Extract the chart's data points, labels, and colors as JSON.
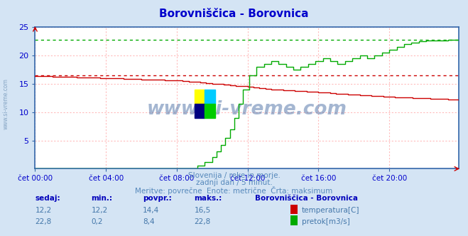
{
  "title": "Borovniščica - Borovnica",
  "title_color": "#0000cc",
  "bg_color": "#d4e4f4",
  "plot_bg_color": "#ffffff",
  "grid_color": "#ffbbbb",
  "axis_color": "#3366aa",
  "tick_color": "#0000cc",
  "ylim": [
    0,
    25
  ],
  "yticks": [
    5,
    10,
    15,
    20,
    25
  ],
  "xlim": [
    0,
    287
  ],
  "xtick_labels": [
    "čet 00:00",
    "čet 04:00",
    "čet 08:00",
    "čet 12:00",
    "čet 16:00",
    "čet 20:00"
  ],
  "xtick_positions": [
    0,
    48,
    96,
    144,
    192,
    240
  ],
  "watermark": "www.si-vreme.com",
  "watermark_color": "#4a6fa5",
  "sub_text1": "Slovenija / reke in morje.",
  "sub_text2": "zadnji dan / 5 minut.",
  "sub_text3": "Meritve: povrečne  Enote: metrične  Črta: maksimum",
  "sub_text_color": "#5588bb",
  "footer_label_color": "#0000bb",
  "footer_value_color": "#4477aa",
  "temp_color": "#cc0000",
  "flow_color": "#00aa00",
  "max_temp": 16.5,
  "max_flow": 22.8,
  "sidebar_text": "www.si-vreme.com",
  "sidebar_color": "#7799bb",
  "icon_colors": [
    "#ffff00",
    "#00ccff",
    "#000080",
    "#00cc00"
  ]
}
